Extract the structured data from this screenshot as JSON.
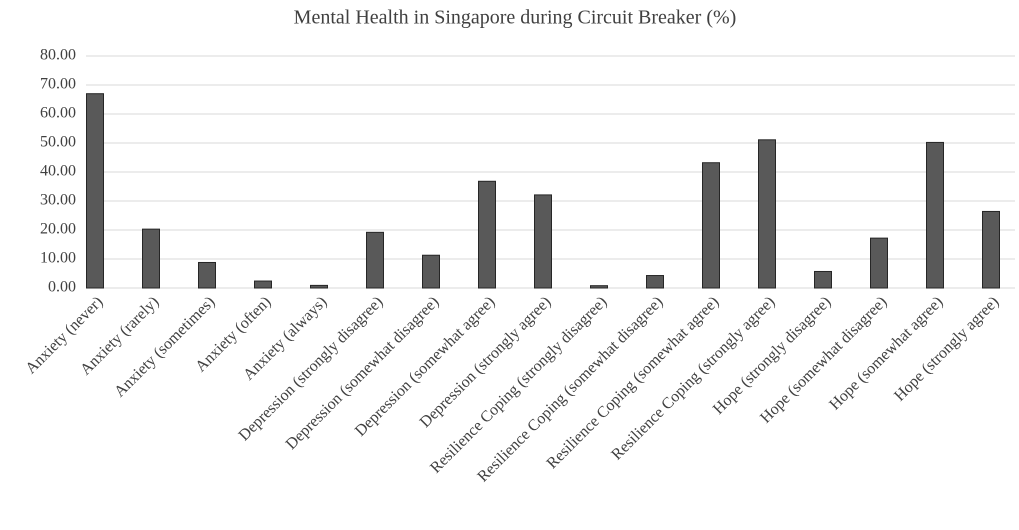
{
  "chart_data": {
    "type": "bar",
    "title": "Mental Health in Singapore during Circuit Breaker (%)",
    "categories": [
      "Anxiety (never)",
      "Anxiety (rarely)",
      "Anxiety (sometimes)",
      "Anxiety (often)",
      "Anxiety (always)",
      "Depression (strongly disagree)",
      "Depression (somewhat disagree)",
      "Depression (somewhat agree)",
      "Depression (strongly agree)",
      "Resilience Coping (strongly disagree)",
      "Resilience Coping (somewhat disagree)",
      "Resilience Coping (somewhat agree)",
      "Resilience Coping (strongly agree)",
      "Hope (strongly disagree)",
      "Hope (somewhat disagree)",
      "Hope (somewhat agree)",
      "Hope (strongly agree)"
    ],
    "values": [
      67,
      20.3,
      8.8,
      2.4,
      0.9,
      19.2,
      11.3,
      36.8,
      32.1,
      0.8,
      4.3,
      43.2,
      51.1,
      5.7,
      17.2,
      50.2,
      26.4
    ],
    "color": "#595959",
    "ylim": [
      0,
      80
    ],
    "yticks": [
      {
        "value": 0,
        "label": "0.00"
      },
      {
        "value": 10,
        "label": "10.00"
      },
      {
        "value": 20,
        "label": "20.00"
      },
      {
        "value": 30,
        "label": "30.00"
      },
      {
        "value": 40,
        "label": "40.00"
      },
      {
        "value": 50,
        "label": "50.00"
      },
      {
        "value": 60,
        "label": "60.00"
      },
      {
        "value": 70,
        "label": "70.00"
      },
      {
        "value": 80,
        "label": "80.00"
      }
    ],
    "grid": true
  }
}
